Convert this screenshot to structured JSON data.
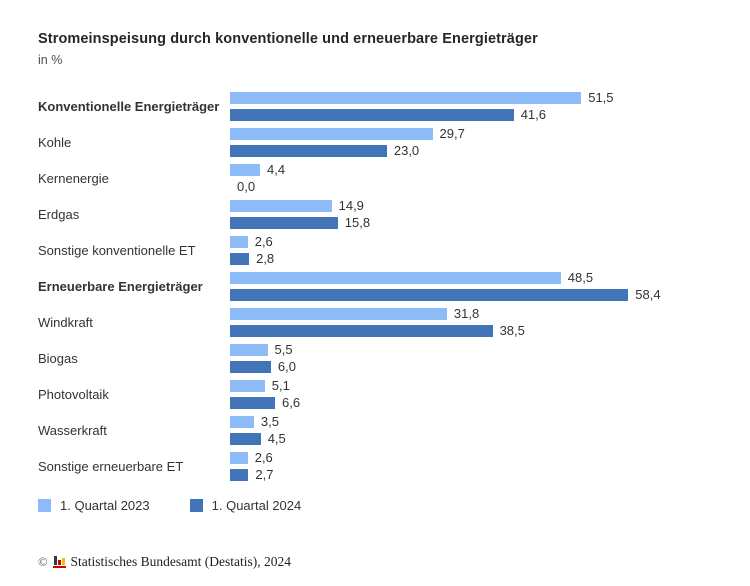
{
  "title": "Stromeinspeisung durch konventionelle und erneuerbare Energieträger",
  "subtitle": "in %",
  "colors": {
    "series_2023": "#8dbbf7",
    "series_2024": "#4275b8"
  },
  "chart_data": {
    "type": "bar",
    "orientation": "horizontal",
    "title": "Stromeinspeisung durch konventionelle und erneuerbare Energieträger",
    "unit_label": "in %",
    "categories": [
      "Konventionelle Energieträger",
      "Kohle",
      "Kernenergie",
      "Erdgas",
      "Sonstige konventionelle ET",
      "Erneuerbare Energieträger",
      "Windkraft",
      "Biogas",
      "Photovoltaik",
      "Wasserkraft",
      "Sonstige erneuerbare ET"
    ],
    "emphasized_indices": [
      0,
      5
    ],
    "series": [
      {
        "name": "1. Quartal 2023",
        "color": "#8dbbf7",
        "values": [
          51.5,
          29.7,
          4.4,
          14.9,
          2.6,
          48.5,
          31.8,
          5.5,
          5.1,
          3.5,
          2.6
        ]
      },
      {
        "name": "1. Quartal 2024",
        "color": "#4275b8",
        "values": [
          41.6,
          23.0,
          0.0,
          15.8,
          2.8,
          58.4,
          38.5,
          6.0,
          6.6,
          4.5,
          2.7
        ]
      }
    ],
    "xlim": [
      0,
      60
    ],
    "value_labels_shown": true,
    "decimal_separator": ",",
    "grid": false,
    "legend_position": "bottom"
  },
  "footer": {
    "copyright": "©",
    "source": "Statistisches Bundesamt (Destatis), 2024"
  }
}
